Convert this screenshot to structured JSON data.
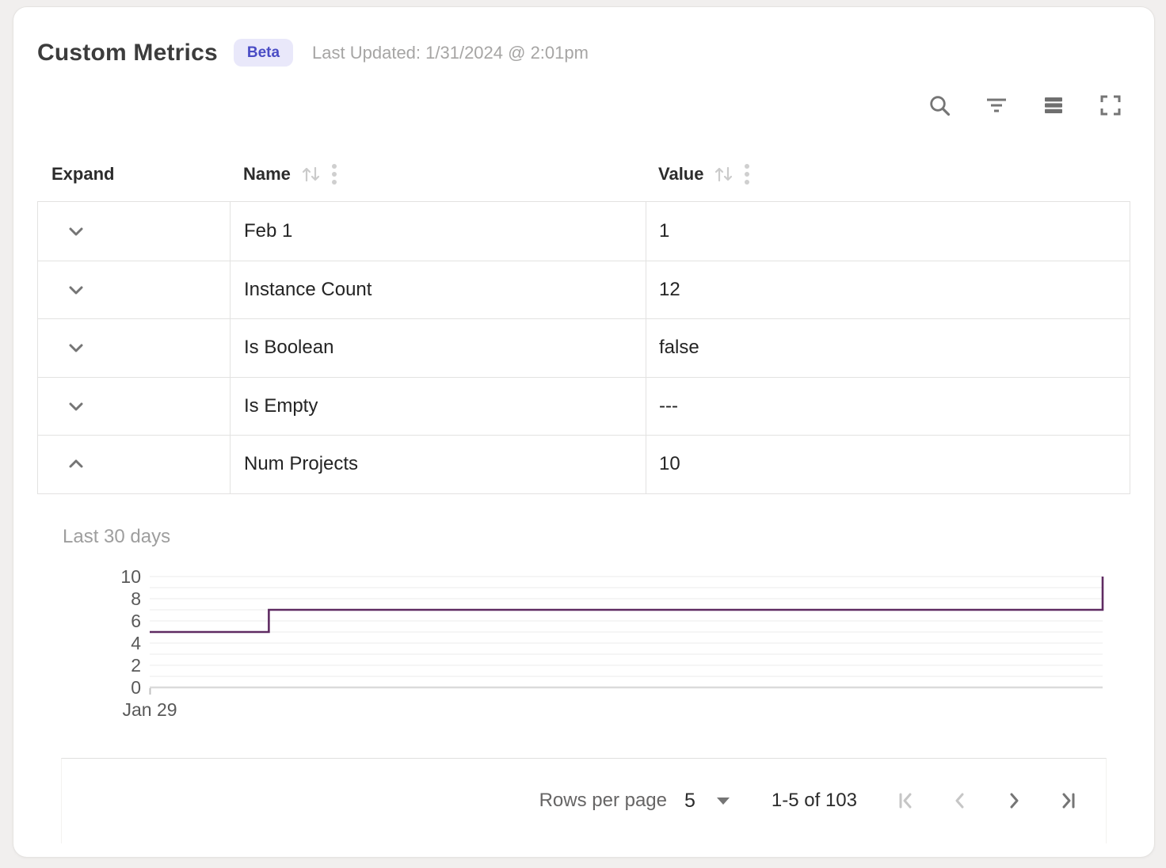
{
  "header": {
    "title": "Custom Metrics",
    "badge": "Beta",
    "last_updated": "Last Updated: 1/31/2024 @ 2:01pm"
  },
  "toolbar": {
    "icons": [
      "search",
      "filter",
      "density",
      "fullscreen"
    ]
  },
  "table": {
    "columns": [
      {
        "label": "Expand",
        "sortable": false
      },
      {
        "label": "Name",
        "sortable": true
      },
      {
        "label": "Value",
        "sortable": true
      }
    ],
    "rows": [
      {
        "name": "Feb 1",
        "value": "1",
        "expanded": false
      },
      {
        "name": "Instance Count",
        "value": "12",
        "expanded": false
      },
      {
        "name": "Is Boolean",
        "value": "false",
        "expanded": false
      },
      {
        "name": "Is Empty",
        "value": "---",
        "expanded": false
      },
      {
        "name": "Num Projects",
        "value": "10",
        "expanded": true
      }
    ]
  },
  "chart_data": {
    "type": "line",
    "title": "Last 30 days",
    "series": [
      {
        "name": "Num Projects",
        "step": "after",
        "points": [
          {
            "x": 0,
            "y": 5
          },
          {
            "x": 0.125,
            "y": 7
          },
          {
            "x": 1.0,
            "y": 10
          }
        ]
      }
    ],
    "xlabel": "",
    "ylabel": "",
    "x_tick_labels": [
      "Jan 29"
    ],
    "ylim": [
      0,
      10
    ],
    "y_major_ticks": [
      0,
      2,
      4,
      6,
      8,
      10
    ],
    "y_minor_grid_every": 1,
    "grid": true,
    "legend": false,
    "line_color": "#5f2b62"
  },
  "pagination": {
    "rows_per_page_label": "Rows per page",
    "rows_per_page_value": "5",
    "range_label": "1-5 of 103",
    "first_enabled": false,
    "prev_enabled": false,
    "next_enabled": true,
    "last_enabled": true
  },
  "colors": {
    "card_bg": "#ffffff",
    "page_bg": "#f1efee",
    "accent_badge_bg": "#e9e8fa",
    "accent_badge_text": "#4a4cc5",
    "chart_line": "#5f2b62",
    "border": "#e3e2e1",
    "icon_gray": "#757575",
    "icon_light": "#c9c9c9",
    "text_dark": "#242424",
    "text_muted": "#9e9e9e"
  }
}
